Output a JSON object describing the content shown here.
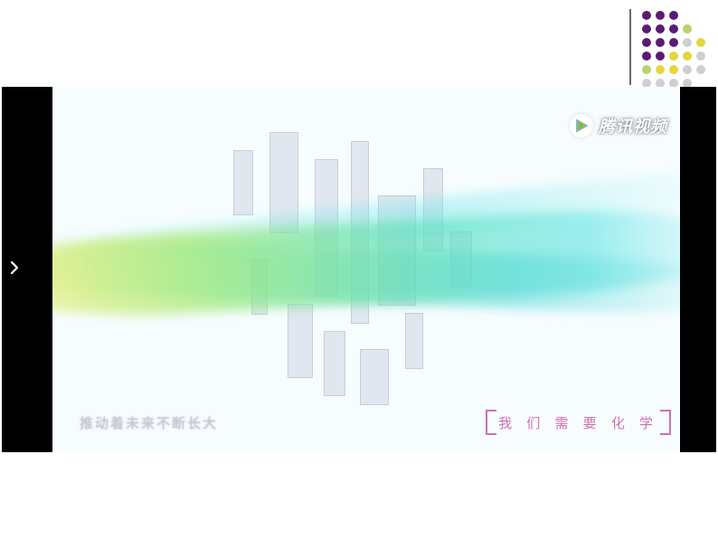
{
  "corner_logo": {
    "divider_color": "#6a6a6a",
    "dots": {
      "cols": 5,
      "rows": 6,
      "colors": [
        [
          "#5a1b72",
          "#5a1b72",
          "#5a1b72",
          "",
          ""
        ],
        [
          "#5a1b72",
          "#5a1b72",
          "#5a1b72",
          "#b7d36a",
          ""
        ],
        [
          "#5a1b72",
          "#5a1b72",
          "#5a1b72",
          "#cfcfcf",
          "#e6d63a"
        ],
        [
          "#5a1b72",
          "#5a1b72",
          "#e6d63a",
          "#e6d63a",
          "#cfcfcf"
        ],
        [
          "#b7d36a",
          "#e6d63a",
          "#e6d63a",
          "#cfcfcf",
          "#cfcfcf"
        ],
        [
          "#cfcfcf",
          "#cfcfcf",
          "#cfcfcf",
          "#cfcfcf",
          ""
        ]
      ]
    }
  },
  "player": {
    "background": "#000000",
    "frame_background": "#f7fdff",
    "wave_colors": [
      "#f6ef7a",
      "#a8e96a",
      "#58e0b9",
      "#6ce6e6"
    ],
    "watermark": {
      "text": "腾讯视频",
      "text_color": "#ffffff",
      "play_colors": {
        "outer": "#57b7ff",
        "a": "#ff9a00",
        "b": "#37d26b"
      }
    },
    "subtitle": {
      "text": "推动着未来不断长大",
      "color": "#c8c8d6"
    },
    "badge": {
      "text": "我 们 需 要 化 学",
      "color": "#d070b0"
    },
    "arrow": {
      "bg": "#000000",
      "chevron_color": "#ffffff"
    }
  }
}
